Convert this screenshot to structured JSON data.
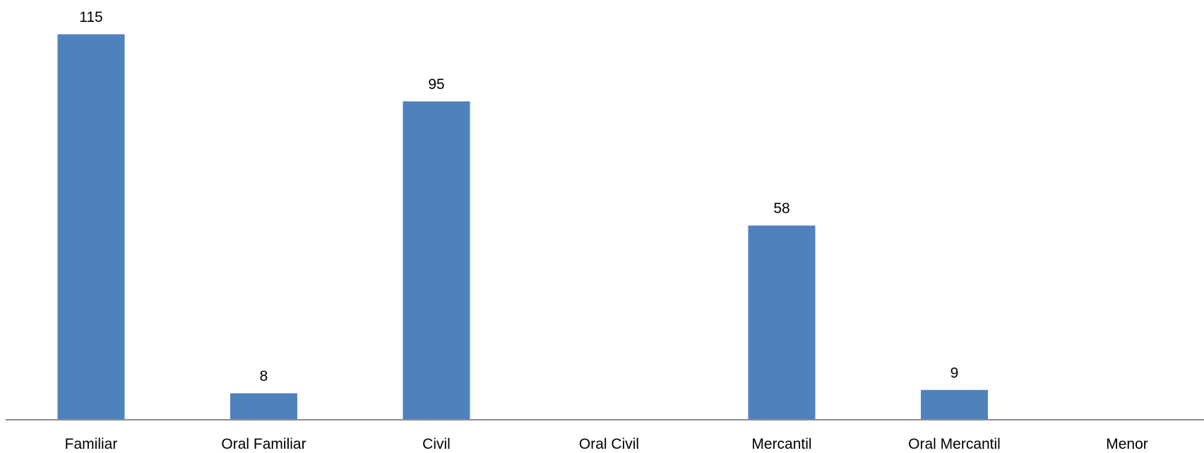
{
  "chart_data": {
    "type": "bar",
    "title": "",
    "xlabel": "",
    "ylabel": "",
    "categories": [
      "Familiar",
      "Oral Familiar",
      "Civil",
      "Oral Civil",
      "Mercantil",
      "Oral Mercantil",
      "Menor"
    ],
    "values": [
      115,
      8,
      95,
      null,
      58,
      9,
      null
    ],
    "data_labels": [
      "115",
      "8",
      "95",
      "",
      "58",
      "9",
      ""
    ],
    "ylim": [
      0,
      115
    ],
    "grid": false,
    "legend": "none",
    "bar_color": "#4F81BD",
    "axis_color": "#8C8C8C"
  }
}
